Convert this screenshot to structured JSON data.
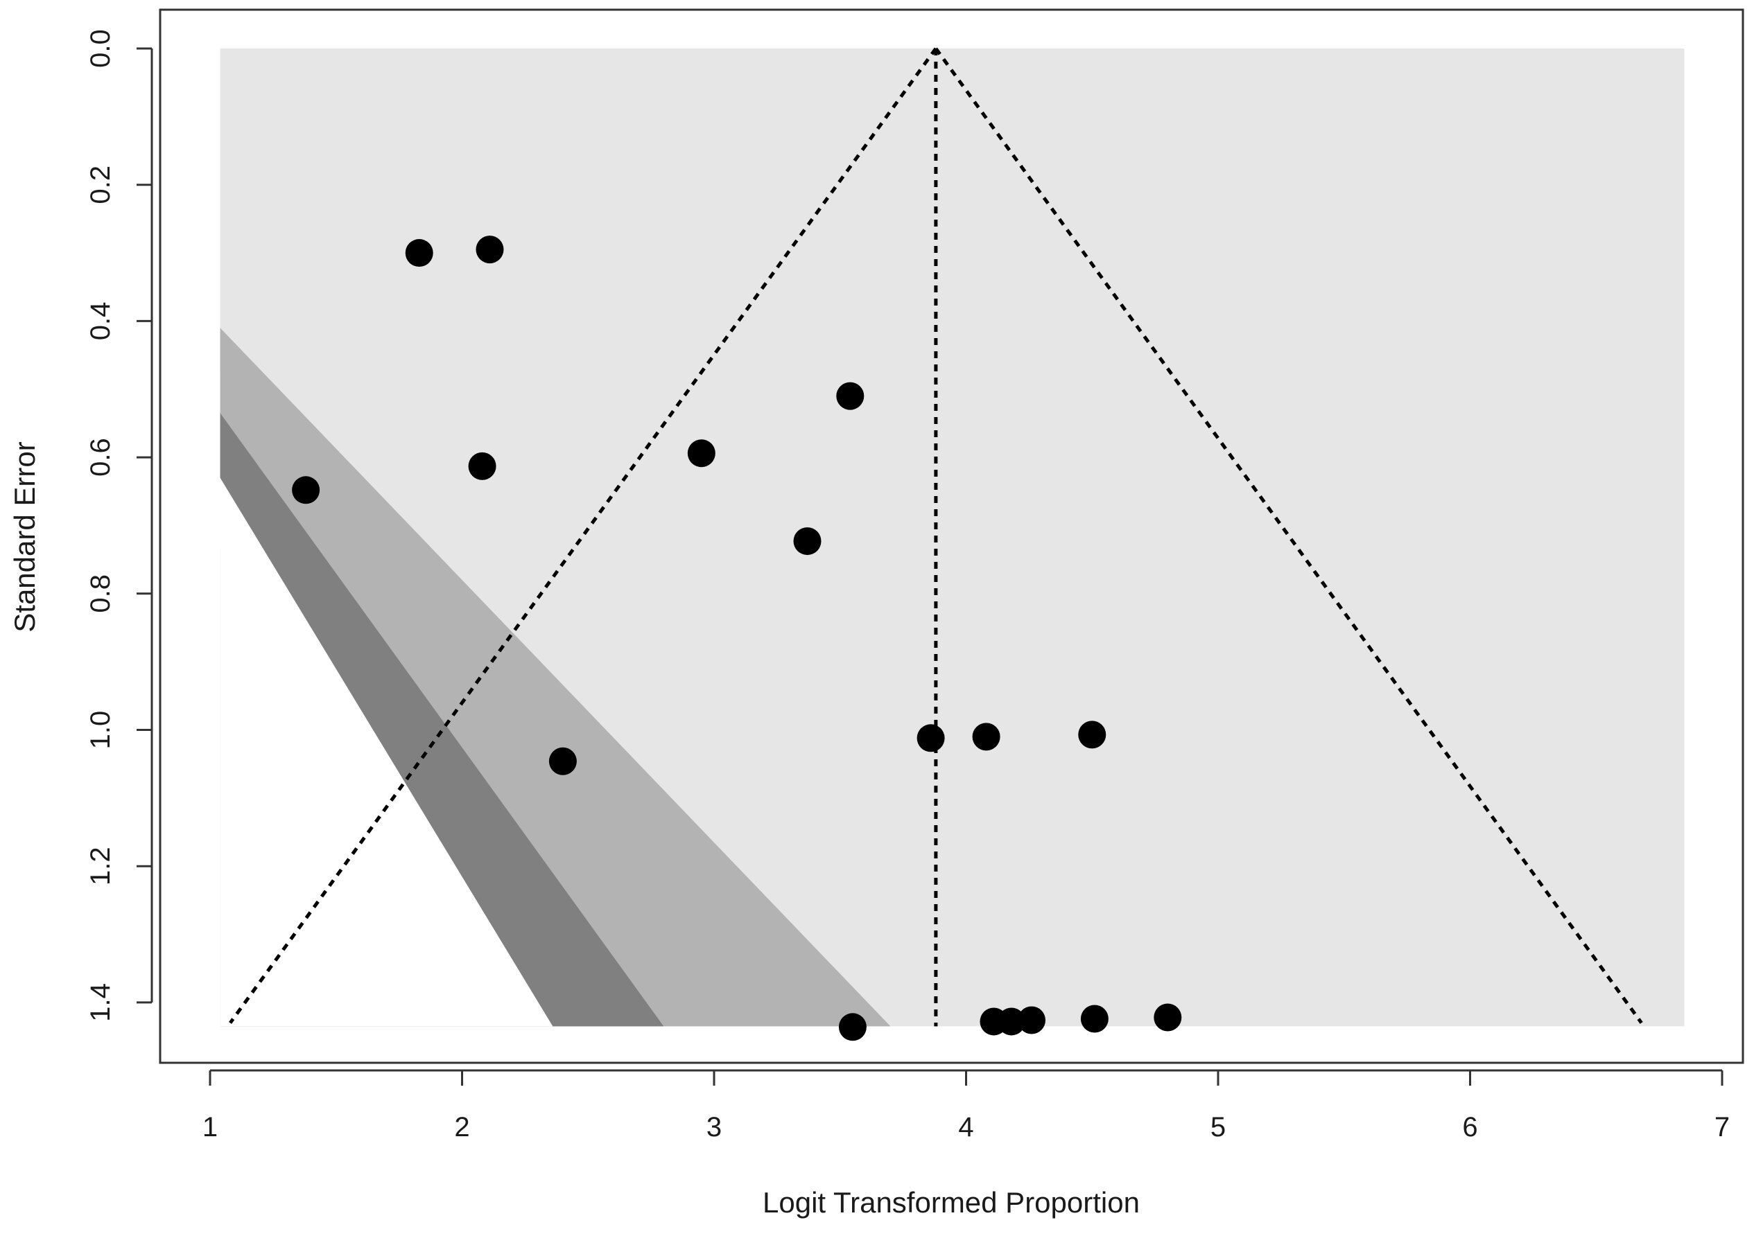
{
  "chart_data": {
    "type": "scatter",
    "title": "",
    "xlabel": "Logit Transformed Proportion",
    "ylabel": "Standard Error",
    "xlim": [
      0.7,
      7.0
    ],
    "ylim": [
      0.0,
      1.5
    ],
    "y_reversed": true,
    "x_ticks": [
      1,
      2,
      3,
      4,
      5,
      6,
      7
    ],
    "y_ticks": [
      0.0,
      0.2,
      0.4,
      0.6,
      0.8,
      1.0,
      1.2,
      1.4
    ],
    "x_tick_labels": [
      "1",
      "2",
      "3",
      "4",
      "5",
      "6",
      "7"
    ],
    "y_tick_labels": [
      "0.0",
      "0.2",
      "0.4",
      "0.6",
      "0.8",
      "1.0",
      "1.2",
      "1.4"
    ],
    "grid": false,
    "legend": "none",
    "pooled_estimate": 3.88,
    "funnel_limits": {
      "apex": [
        3.88,
        0.0
      ],
      "left_bottom": [
        1.08,
        1.43
      ],
      "right_bottom": [
        6.68,
        1.43
      ]
    },
    "contour_regions": [
      {
        "name": "outer",
        "color": "#e6e6e6",
        "polygon": [
          [
            1.04,
            0.0
          ],
          [
            6.85,
            0.0
          ],
          [
            6.85,
            1.435
          ],
          [
            1.04,
            1.435
          ]
        ]
      },
      {
        "name": "light",
        "color": "#b3b3b3",
        "polygon": [
          [
            1.04,
            0.41
          ],
          [
            3.7,
            1.435
          ],
          [
            1.04,
            1.435
          ]
        ]
      },
      {
        "name": "mid",
        "color": "#808080",
        "polygon": [
          [
            1.04,
            0.535
          ],
          [
            2.8,
            1.435
          ],
          [
            1.04,
            1.435
          ]
        ]
      },
      {
        "name": "dark",
        "color": "#ffffff",
        "polygon": [
          [
            1.04,
            0.63
          ],
          [
            2.36,
            1.435
          ],
          [
            1.04,
            1.435
          ]
        ]
      }
    ],
    "points": [
      {
        "x": 1.83,
        "y": 0.3
      },
      {
        "x": 2.11,
        "y": 0.295
      },
      {
        "x": 3.54,
        "y": 0.51
      },
      {
        "x": 2.95,
        "y": 0.594
      },
      {
        "x": 2.08,
        "y": 0.613
      },
      {
        "x": 1.38,
        "y": 0.648
      },
      {
        "x": 3.37,
        "y": 0.723
      },
      {
        "x": 3.86,
        "y": 1.012
      },
      {
        "x": 4.08,
        "y": 1.01
      },
      {
        "x": 4.5,
        "y": 1.007
      },
      {
        "x": 2.4,
        "y": 1.046
      },
      {
        "x": 3.55,
        "y": 1.436
      },
      {
        "x": 4.11,
        "y": 1.428
      },
      {
        "x": 4.18,
        "y": 1.428
      },
      {
        "x": 4.26,
        "y": 1.426
      },
      {
        "x": 4.51,
        "y": 1.424
      },
      {
        "x": 4.8,
        "y": 1.422
      }
    ],
    "colors": {
      "points": "#000000",
      "lines": "#000000",
      "frame": "#333333"
    }
  }
}
